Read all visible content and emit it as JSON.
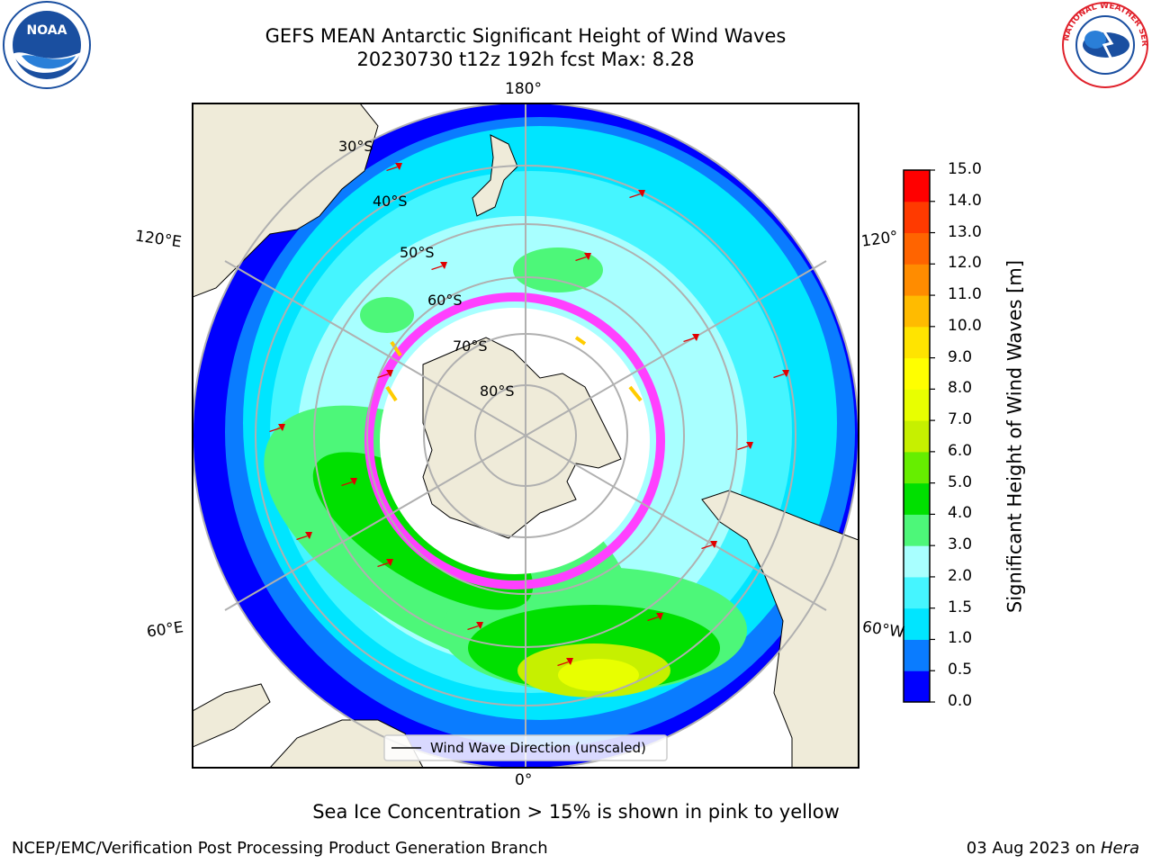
{
  "title": {
    "line1": "GEFS MEAN Antarctic Significant Height of Wind Waves",
    "line2": "20230730 t12z 192h fcst   Max: 8.28"
  },
  "logos": {
    "left": {
      "text": "NOAA",
      "icon": "noaa-logo",
      "color": "#1a4fa0"
    },
    "right": {
      "text": "NATIONAL WEATHER SERVICE",
      "icon": "nws-logo",
      "color": "#e0212b"
    }
  },
  "map": {
    "projection": "south-polar-stereographic",
    "longitude_labels": {
      "top": "180°",
      "bottom": "0°",
      "left_upper": "120°E",
      "left_lower": "60°E",
      "right_upper": "120°",
      "right_lower": "60°W"
    },
    "latitude_labels": [
      "30°S",
      "40°S",
      "50°S",
      "60°S",
      "70°S",
      "80°S"
    ],
    "legend_label": "Wind Wave Direction (unscaled)",
    "arrow_color": "#e00000",
    "land_color": "#efebd9",
    "ice_color": "#ff40ff"
  },
  "colorbar": {
    "label": "Significant Height of Wind Waves [m]",
    "ticks": [
      "0.0",
      "0.5",
      "1.0",
      "1.5",
      "2.0",
      "3.0",
      "4.0",
      "5.0",
      "6.0",
      "7.0",
      "8.0",
      "9.0",
      "10.0",
      "11.0",
      "12.0",
      "13.0",
      "14.0",
      "15.0"
    ],
    "colors": [
      "#0000ff",
      "#0a7cff",
      "#00e5ff",
      "#45f5ff",
      "#a8ffff",
      "#4df779",
      "#00e000",
      "#66ee00",
      "#c6f000",
      "#e8ff00",
      "#ffff00",
      "#ffe400",
      "#ffbb00",
      "#ff8c00",
      "#ff6400",
      "#ff3a00",
      "#ff0000"
    ]
  },
  "footer": {
    "caption": "Sea Ice Concentration > 15% is shown in pink to yellow",
    "credit": "NCEP/EMC/Verification Post Processing Product Generation Branch",
    "date": "03 Aug 2023 on ",
    "machine": "Hera"
  }
}
